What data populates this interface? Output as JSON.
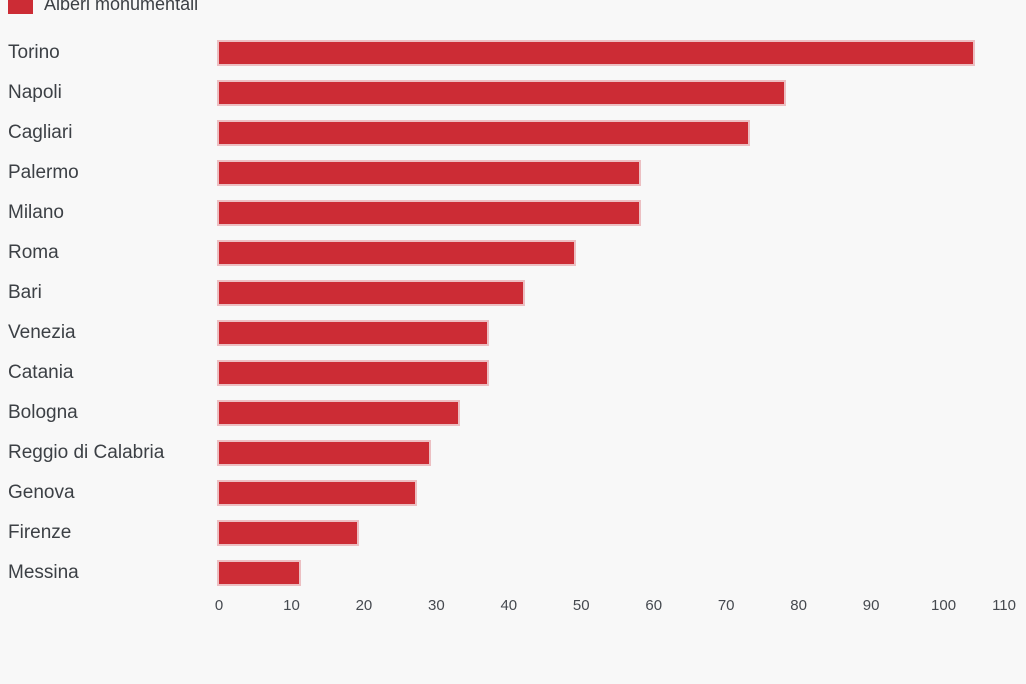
{
  "legend": {
    "label": "Alberi monumentali"
  },
  "colors": {
    "bar": "#cc2c35",
    "bar_edge": "#eeb6ba",
    "background": "#f8f8f8",
    "text": "#3c4045"
  },
  "chart_data": {
    "type": "bar",
    "orientation": "horizontal",
    "title": "",
    "legend_entries": [
      "Alberi monumentali"
    ],
    "legend_position": "top-left",
    "categories": [
      "Torino",
      "Napoli",
      "Cagliari",
      "Palermo",
      "Milano",
      "Roma",
      "Bari",
      "Venezia",
      "Catania",
      "Bologna",
      "Reggio di Calabria",
      "Genova",
      "Firenze",
      "Messina"
    ],
    "values": [
      104,
      78,
      73,
      58,
      58,
      49,
      42,
      37,
      37,
      33,
      29,
      27,
      19,
      11
    ],
    "xlabel": "",
    "ylabel": "",
    "xlim": [
      0,
      110
    ],
    "xticks": [
      0,
      10,
      20,
      30,
      40,
      50,
      60,
      70,
      80,
      90,
      100,
      110
    ],
    "grid": false
  }
}
